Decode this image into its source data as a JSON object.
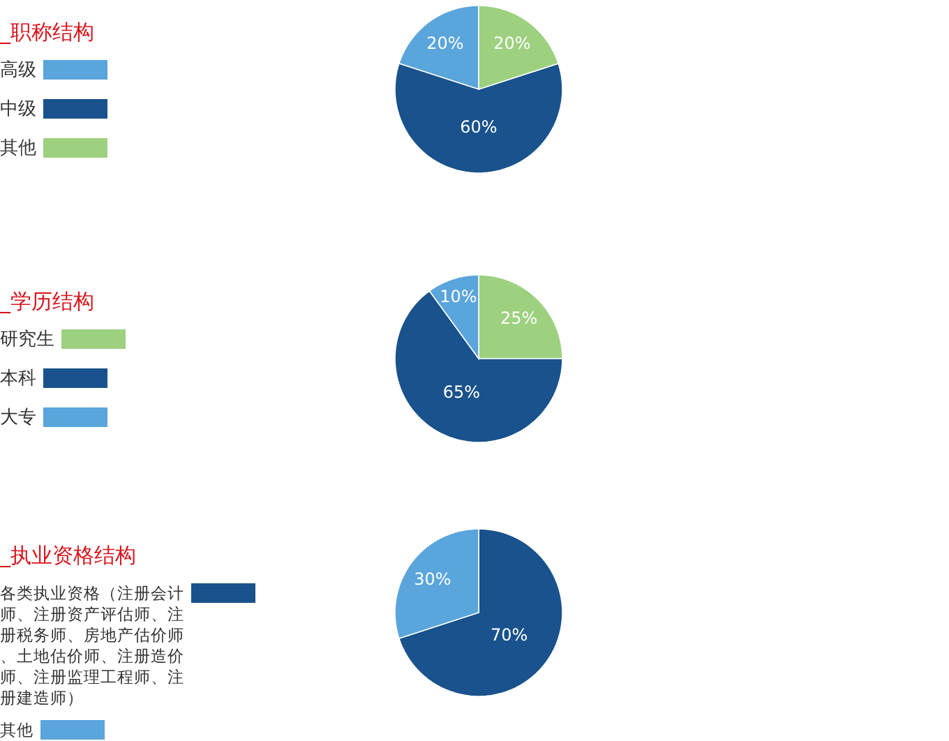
{
  "chart_data": [
    {
      "type": "pie",
      "title": "_职称结构",
      "categories": [
        "高级",
        "中级",
        "其他"
      ],
      "values": [
        20,
        60,
        20
      ],
      "colors": [
        "#5aa5dc",
        "#19528c",
        "#9dd07f"
      ],
      "value_labels": [
        "20%",
        "60%",
        "20%"
      ],
      "legend": "left"
    },
    {
      "type": "pie",
      "title": "_学历结构",
      "categories": [
        "研究生",
        "本科",
        "大专"
      ],
      "values": [
        25,
        65,
        10
      ],
      "colors": [
        "#9dd07f",
        "#19528c",
        "#5aa5dc"
      ],
      "value_labels": [
        "25%",
        "65%",
        "10%"
      ],
      "legend": "left"
    },
    {
      "type": "pie",
      "title": "_执业资格结构",
      "categories": [
        "各类执业资格（注册会计师、注册资产评估师、注册税务师、房地产估价师、土地估价师、注册造价师、注册监理工程师、注册建造师）",
        "其他"
      ],
      "values": [
        70,
        30
      ],
      "colors": [
        "#19528c",
        "#5aa5dc"
      ],
      "value_labels": [
        "70%",
        "30%"
      ],
      "legend": "left"
    }
  ]
}
